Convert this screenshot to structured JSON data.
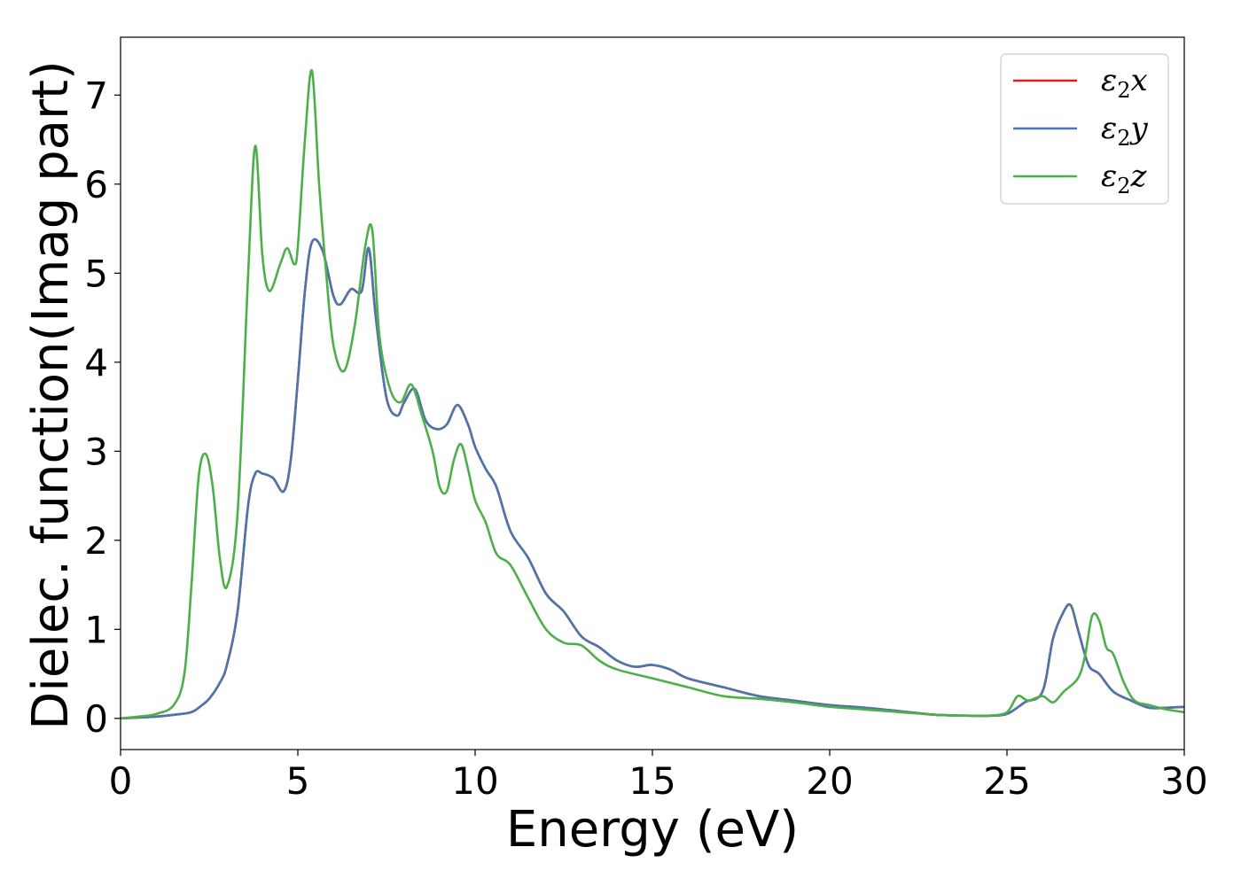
{
  "chart_data": {
    "type": "line",
    "title": "",
    "xlabel": "Energy (eV)",
    "ylabel": "Dielec. function(Imag part)",
    "xlim": [
      0,
      30
    ],
    "ylim": [
      -0.35,
      7.65
    ],
    "xticks": [
      0,
      5,
      10,
      15,
      20,
      25,
      30
    ],
    "yticks": [
      0,
      1,
      2,
      3,
      4,
      5,
      6,
      7
    ],
    "grid": false,
    "legend_position": "top-right",
    "series": [
      {
        "name": "ε2x",
        "legend_base": "ε",
        "legend_sub": "2",
        "legend_var": "x",
        "color": "#e41a1c",
        "x": [
          0,
          0.5,
          1.0,
          1.5,
          2.0,
          2.3,
          2.5,
          2.8,
          3.0,
          3.3,
          3.6,
          3.8,
          4.0,
          4.3,
          4.6,
          4.8,
          5.0,
          5.2,
          5.4,
          5.7,
          6.0,
          6.2,
          6.5,
          6.8,
          7.0,
          7.2,
          7.5,
          7.8,
          8.0,
          8.3,
          8.6,
          8.9,
          9.2,
          9.5,
          9.8,
          10.0,
          10.3,
          10.6,
          11.0,
          11.5,
          12.0,
          12.5,
          13.0,
          13.5,
          14.0,
          14.5,
          15.0,
          15.5,
          16.0,
          17.0,
          18.0,
          19.0,
          20.0,
          21.0,
          22.0,
          23.0,
          24.0,
          24.5,
          25.0,
          25.5,
          26.0,
          26.3,
          26.6,
          26.8,
          27.0,
          27.3,
          27.6,
          28.0,
          28.5,
          29.0,
          29.5,
          30.0
        ],
        "y": [
          0,
          0.01,
          0.02,
          0.04,
          0.07,
          0.15,
          0.22,
          0.4,
          0.6,
          1.2,
          2.4,
          2.75,
          2.75,
          2.7,
          2.55,
          2.9,
          3.8,
          4.8,
          5.35,
          5.25,
          4.75,
          4.65,
          4.82,
          4.8,
          5.28,
          4.5,
          3.6,
          3.4,
          3.55,
          3.7,
          3.35,
          3.25,
          3.3,
          3.52,
          3.3,
          3.05,
          2.8,
          2.6,
          2.1,
          1.8,
          1.4,
          1.2,
          0.92,
          0.8,
          0.65,
          0.58,
          0.6,
          0.55,
          0.45,
          0.35,
          0.25,
          0.2,
          0.15,
          0.12,
          0.08,
          0.04,
          0.03,
          0.03,
          0.05,
          0.18,
          0.3,
          0.9,
          1.2,
          1.27,
          1.0,
          0.6,
          0.5,
          0.3,
          0.2,
          0.12,
          0.12,
          0.13
        ]
      },
      {
        "name": "ε2y",
        "legend_base": "ε",
        "legend_sub": "2",
        "legend_var": "y",
        "color": "#4a76ad",
        "x": [
          0,
          0.5,
          1.0,
          1.5,
          2.0,
          2.3,
          2.5,
          2.8,
          3.0,
          3.3,
          3.6,
          3.8,
          4.0,
          4.3,
          4.6,
          4.8,
          5.0,
          5.2,
          5.4,
          5.7,
          6.0,
          6.2,
          6.5,
          6.8,
          7.0,
          7.2,
          7.5,
          7.8,
          8.0,
          8.3,
          8.6,
          8.9,
          9.2,
          9.5,
          9.8,
          10.0,
          10.3,
          10.6,
          11.0,
          11.5,
          12.0,
          12.5,
          13.0,
          13.5,
          14.0,
          14.5,
          15.0,
          15.5,
          16.0,
          17.0,
          18.0,
          19.0,
          20.0,
          21.0,
          22.0,
          23.0,
          24.0,
          24.5,
          25.0,
          25.5,
          26.0,
          26.3,
          26.6,
          26.8,
          27.0,
          27.3,
          27.6,
          28.0,
          28.5,
          29.0,
          29.5,
          30.0
        ],
        "y": [
          0,
          0.01,
          0.02,
          0.04,
          0.07,
          0.15,
          0.22,
          0.4,
          0.6,
          1.2,
          2.4,
          2.75,
          2.75,
          2.7,
          2.55,
          2.9,
          3.8,
          4.8,
          5.35,
          5.25,
          4.75,
          4.65,
          4.82,
          4.8,
          5.28,
          4.5,
          3.6,
          3.4,
          3.55,
          3.7,
          3.35,
          3.25,
          3.3,
          3.52,
          3.3,
          3.05,
          2.8,
          2.6,
          2.1,
          1.8,
          1.4,
          1.2,
          0.92,
          0.8,
          0.65,
          0.58,
          0.6,
          0.55,
          0.45,
          0.35,
          0.25,
          0.2,
          0.15,
          0.12,
          0.08,
          0.04,
          0.03,
          0.03,
          0.05,
          0.18,
          0.3,
          0.9,
          1.2,
          1.27,
          1.0,
          0.6,
          0.5,
          0.3,
          0.2,
          0.12,
          0.12,
          0.13
        ]
      },
      {
        "name": "ε2z",
        "legend_base": "ε",
        "legend_sub": "2",
        "legend_var": "z",
        "color": "#4daf4a",
        "x": [
          0,
          0.5,
          1.0,
          1.5,
          1.8,
          2.0,
          2.2,
          2.4,
          2.6,
          2.8,
          3.0,
          3.3,
          3.6,
          3.8,
          4.0,
          4.2,
          4.5,
          4.7,
          4.9,
          5.0,
          5.2,
          5.4,
          5.6,
          5.8,
          6.0,
          6.3,
          6.6,
          6.9,
          7.1,
          7.3,
          7.6,
          7.9,
          8.2,
          8.5,
          8.8,
          9.0,
          9.2,
          9.4,
          9.6,
          9.8,
          10.0,
          10.3,
          10.6,
          11.0,
          11.5,
          12.0,
          12.5,
          13.0,
          13.5,
          14.0,
          15.0,
          16.0,
          17.0,
          18.0,
          19.0,
          20.0,
          21.0,
          22.0,
          23.0,
          24.0,
          24.5,
          25.0,
          25.3,
          25.6,
          26.0,
          26.3,
          26.6,
          27.0,
          27.2,
          27.4,
          27.6,
          27.8,
          28.0,
          28.3,
          28.6,
          29.0,
          29.5,
          30.0
        ],
        "y": [
          0,
          0.02,
          0.05,
          0.15,
          0.5,
          1.5,
          2.7,
          2.97,
          2.6,
          1.8,
          1.48,
          2.3,
          5.0,
          6.43,
          5.2,
          4.8,
          5.1,
          5.28,
          5.1,
          5.3,
          6.5,
          7.27,
          6.0,
          5.0,
          4.2,
          3.9,
          4.4,
          5.3,
          5.48,
          4.3,
          3.7,
          3.55,
          3.75,
          3.4,
          3.0,
          2.6,
          2.55,
          2.9,
          3.08,
          2.8,
          2.45,
          2.2,
          1.85,
          1.72,
          1.35,
          1.0,
          0.85,
          0.82,
          0.65,
          0.55,
          0.45,
          0.35,
          0.25,
          0.22,
          0.18,
          0.13,
          0.1,
          0.07,
          0.04,
          0.03,
          0.03,
          0.07,
          0.25,
          0.2,
          0.25,
          0.18,
          0.3,
          0.45,
          0.7,
          1.15,
          1.1,
          0.8,
          0.72,
          0.4,
          0.2,
          0.15,
          0.1,
          0.07
        ]
      }
    ]
  }
}
